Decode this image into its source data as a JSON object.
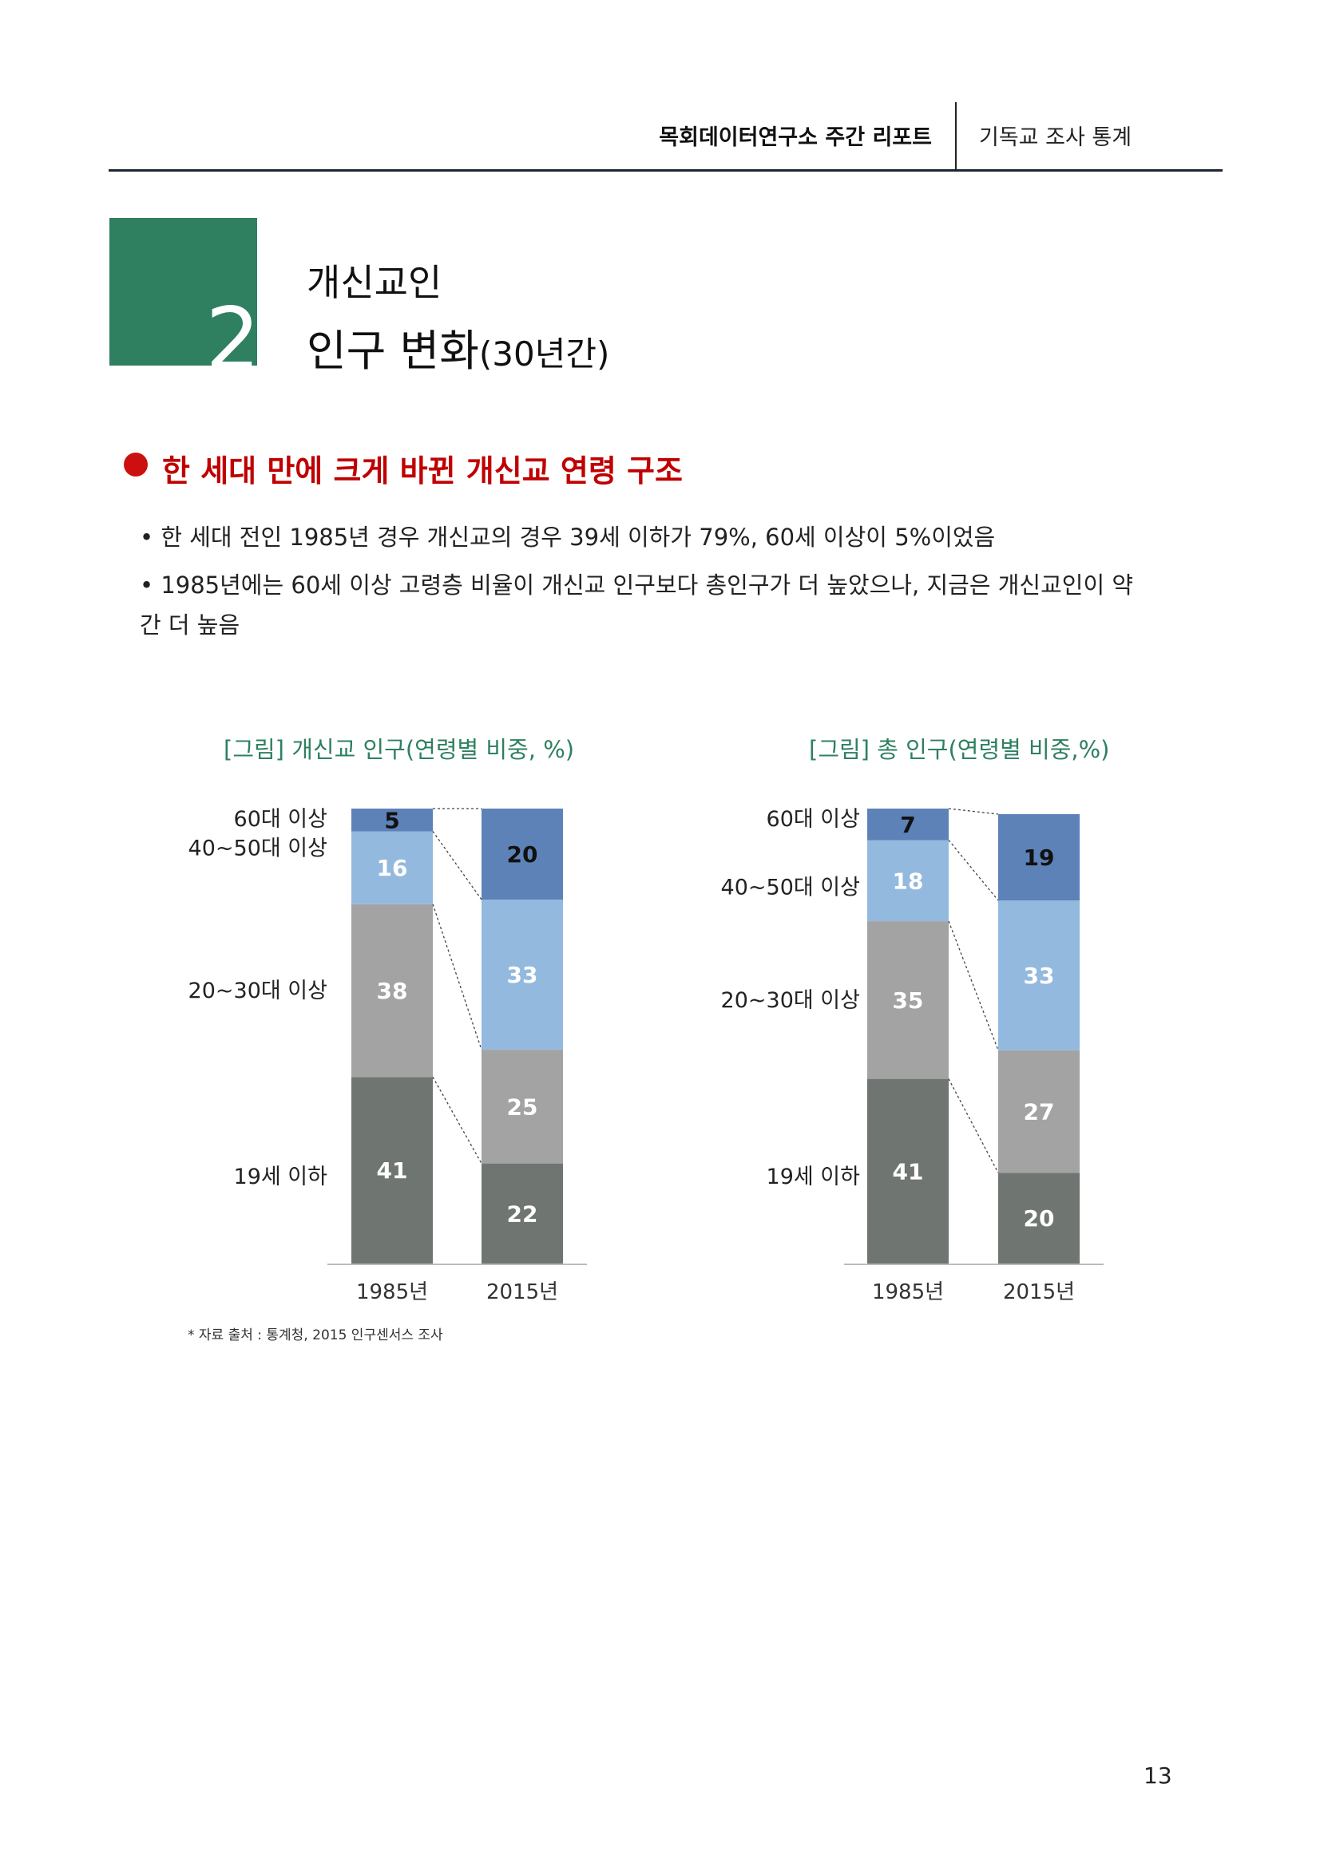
{
  "header": {
    "title": "목회데이터연구소 주간 리포트",
    "subtitle": "기독교 조사 통계"
  },
  "section": {
    "number": "2",
    "title_line1": "개신교인",
    "title_line2_main": "인구 변화",
    "title_line2_paren": "(30년간)"
  },
  "subtitle": "한 세대 만에 크게 바뀐 개신교 연령 구조",
  "bullets": [
    "한 세대 전인 1985년 경우 개신교의 경우 39세 이하가 79%, 60세 이상이 5%이었음",
    "1985년에는 60세 이상 고령층 비율이 개신교 인구보다 총인구가 더 높았으나, 지금은 개신교인이 약간 더 높음"
  ],
  "chart_data": [
    {
      "type": "bar",
      "stacked": true,
      "title": "[그림] 개신교 인구(연령별 비중, %)",
      "categories": [
        "1985년",
        "2015년"
      ],
      "series": [
        {
          "name": "19세 이하",
          "values": [
            41,
            22
          ],
          "color": "#6f7570"
        },
        {
          "name": "20~30대 이상",
          "values": [
            38,
            25
          ],
          "color": "#a3a3a3"
        },
        {
          "name": "40~50대 이상",
          "values": [
            16,
            33
          ],
          "color": "#94b9de"
        },
        {
          "name": "60대 이상",
          "values": [
            5,
            20
          ],
          "color": "#5d82b8"
        }
      ]
    },
    {
      "type": "bar",
      "stacked": true,
      "title": "[그림] 총 인구(연령별 비중,%)",
      "categories": [
        "1985년",
        "2015년"
      ],
      "series": [
        {
          "name": "19세 이하",
          "values": [
            41,
            20
          ],
          "color": "#6f7570"
        },
        {
          "name": "20~30대 이상",
          "values": [
            35,
            27
          ],
          "color": "#a3a3a3"
        },
        {
          "name": "40~50대 이상",
          "values": [
            18,
            33
          ],
          "color": "#94b9de"
        },
        {
          "name": "60대 이상",
          "values": [
            7,
            19
          ],
          "color": "#5d82b8"
        }
      ]
    }
  ],
  "source": "* 자료 출처 : 통계청, 2015 인구센서스 조사",
  "page_number": "13"
}
